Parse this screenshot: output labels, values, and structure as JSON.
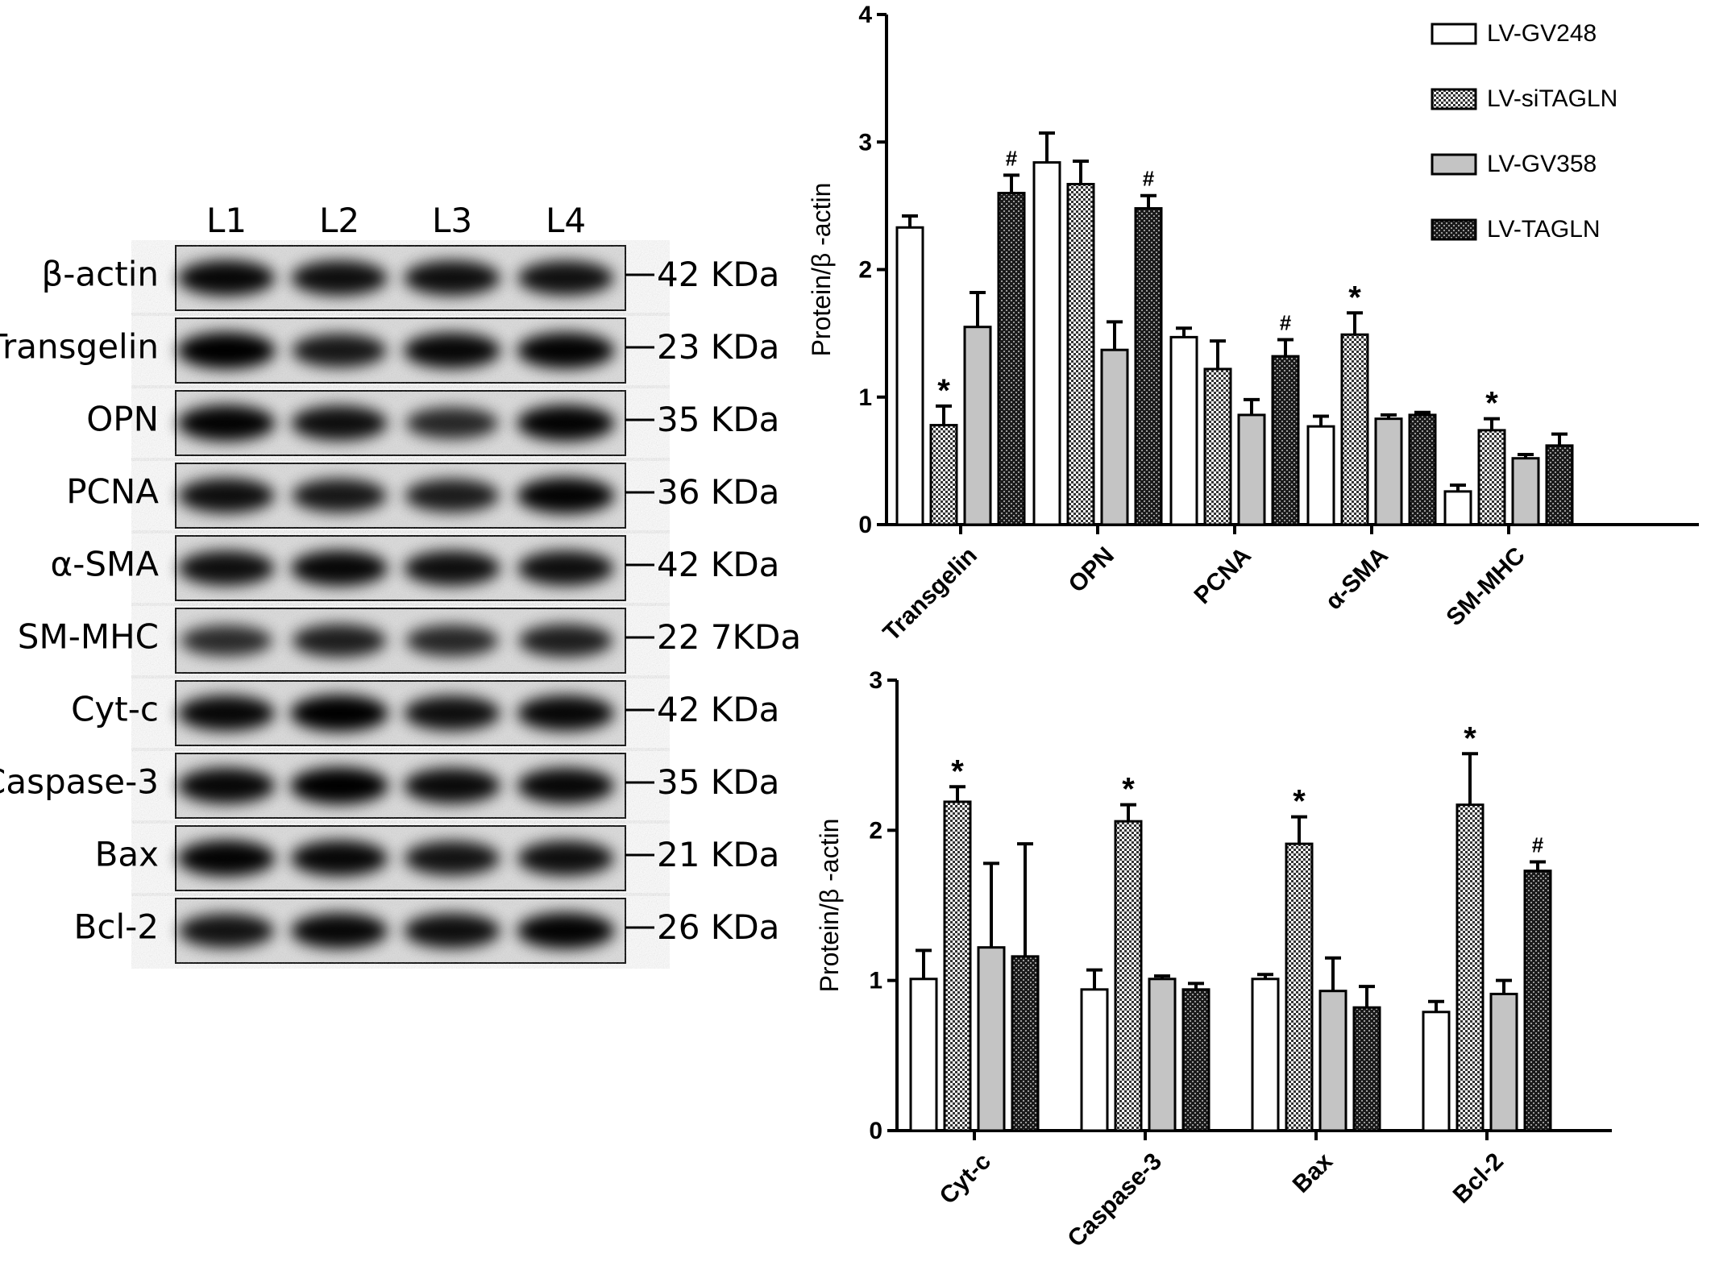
{
  "blot": {
    "lanes": [
      "L1",
      "L2",
      "L3",
      "L4"
    ],
    "rows": [
      {
        "protein": "β-actin",
        "size": "42  KDa",
        "band": [
          0.9,
          0.85,
          0.85,
          0.82
        ]
      },
      {
        "protein": "Transgelin",
        "size": "23  KDa",
        "band": [
          1.0,
          0.75,
          0.9,
          0.95
        ]
      },
      {
        "protein": "OPN",
        "size": "35  KDa",
        "band": [
          0.95,
          0.85,
          0.6,
          0.95
        ]
      },
      {
        "protein": "PCNA",
        "size": "36  KDa",
        "band": [
          0.85,
          0.75,
          0.72,
          0.95
        ]
      },
      {
        "protein": "α-SMA",
        "size": "42  KDa",
        "band": [
          0.85,
          0.9,
          0.85,
          0.85
        ]
      },
      {
        "protein": "SM-MHC",
        "size": "22  7KDa",
        "band": [
          0.55,
          0.7,
          0.6,
          0.7
        ]
      },
      {
        "protein": "Cyt-c",
        "size": "42  KDa",
        "band": [
          0.9,
          1.0,
          0.85,
          0.9
        ]
      },
      {
        "protein": "Caspase-3",
        "size": "35  KDa",
        "band": [
          0.92,
          1.0,
          0.88,
          0.9
        ]
      },
      {
        "protein": "Bax",
        "size": "21  KDa",
        "band": [
          0.95,
          0.9,
          0.8,
          0.85
        ]
      },
      {
        "protein": "Bcl-2",
        "size": "26  KDa",
        "band": [
          0.8,
          0.9,
          0.85,
          0.95
        ]
      }
    ]
  },
  "legend": {
    "series": [
      "LV-GV248",
      "LV-siTAGLN",
      "LV-GV358",
      "LV-TAGLN"
    ]
  },
  "chart_data": [
    {
      "type": "bar",
      "ylabel": "Protein/β -actin",
      "ylim": [
        0,
        4
      ],
      "yticks": [
        "0",
        "1",
        "2",
        "3",
        "4"
      ],
      "categories": [
        "Transgelin",
        "OPN",
        "PCNA",
        "α-SMA",
        "SM-MHC"
      ],
      "series": [
        {
          "name": "LV-GV248",
          "values": [
            2.33,
            2.84,
            1.47,
            0.77,
            0.26
          ],
          "errors": [
            0.09,
            0.23,
            0.07,
            0.08,
            0.05
          ]
        },
        {
          "name": "LV-siTAGLN",
          "values": [
            0.78,
            2.67,
            1.22,
            1.49,
            0.74
          ],
          "errors": [
            0.15,
            0.18,
            0.22,
            0.17,
            0.09
          ]
        },
        {
          "name": "LV-GV358",
          "values": [
            1.55,
            1.37,
            0.86,
            0.83,
            0.52
          ],
          "errors": [
            0.27,
            0.22,
            0.12,
            0.03,
            0.03
          ]
        },
        {
          "name": "LV-TAGLN",
          "values": [
            2.6,
            2.48,
            1.32,
            0.86,
            0.62
          ],
          "errors": [
            0.14,
            0.1,
            0.13,
            0.02,
            0.09
          ]
        }
      ],
      "annotations": [
        {
          "category": 0,
          "series": 1,
          "text": "*"
        },
        {
          "category": 0,
          "series": 3,
          "text": "#"
        },
        {
          "category": 1,
          "series": 3,
          "text": "#"
        },
        {
          "category": 2,
          "series": 3,
          "text": "#"
        },
        {
          "category": 3,
          "series": 1,
          "text": "*"
        },
        {
          "category": 4,
          "series": 1,
          "text": "*"
        }
      ]
    },
    {
      "type": "bar",
      "ylabel": "Protein/β -actin",
      "ylim": [
        0,
        3
      ],
      "yticks": [
        "0",
        "1",
        "2",
        "3"
      ],
      "categories": [
        "Cyt-c",
        "Caspase-3",
        "Bax",
        "Bcl-2"
      ],
      "series": [
        {
          "name": "LV-GV248",
          "values": [
            1.01,
            0.94,
            1.01,
            0.79
          ],
          "errors": [
            0.19,
            0.13,
            0.03,
            0.07
          ]
        },
        {
          "name": "LV-siTAGLN",
          "values": [
            2.19,
            2.06,
            1.91,
            2.17
          ],
          "errors": [
            0.1,
            0.11,
            0.18,
            0.34
          ]
        },
        {
          "name": "LV-GV358",
          "values": [
            1.22,
            1.01,
            0.93,
            0.91
          ],
          "errors": [
            0.56,
            0.02,
            0.22,
            0.09
          ]
        },
        {
          "name": "LV-TAGLN",
          "values": [
            1.16,
            0.94,
            0.82,
            1.73
          ],
          "errors": [
            0.75,
            0.04,
            0.14,
            0.06
          ]
        }
      ],
      "annotations": [
        {
          "category": 0,
          "series": 1,
          "text": "*"
        },
        {
          "category": 1,
          "series": 1,
          "text": "*"
        },
        {
          "category": 2,
          "series": 1,
          "text": "*"
        },
        {
          "category": 3,
          "series": 1,
          "text": "*"
        },
        {
          "category": 3,
          "series": 3,
          "text": "#"
        }
      ]
    }
  ],
  "colors": {
    "LV-GV248": "#ffffff",
    "LV-siTAGLN": "#8a8a8a",
    "LV-GV358": "#c4c4c4",
    "LV-TAGLN": "#2a2a2a"
  }
}
